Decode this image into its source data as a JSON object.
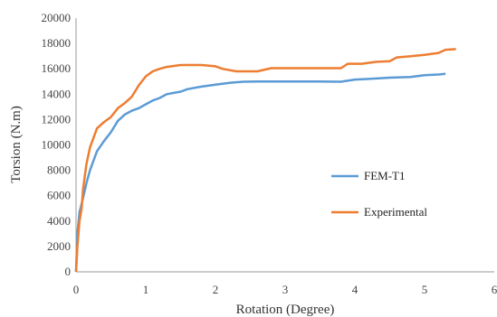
{
  "chart_data": {
    "type": "line",
    "title": "",
    "xlabel": "Rotation (Degree)",
    "ylabel": "Torsion (N.m)",
    "xlim": [
      0,
      6
    ],
    "ylim": [
      0,
      20000
    ],
    "xticks": [
      "0",
      "1",
      "2",
      "3",
      "4",
      "5",
      "6"
    ],
    "yticks": [
      "0",
      "2000",
      "4000",
      "6000",
      "8000",
      "10000",
      "12000",
      "14000",
      "16000",
      "18000",
      "20000"
    ],
    "grid": false,
    "legend_position": "right",
    "series": [
      {
        "name": "FEM-T1",
        "color": "#5b9bd5",
        "points": [
          [
            0,
            0
          ],
          [
            0.02,
            3000
          ],
          [
            0.05,
            4700
          ],
          [
            0.1,
            5800
          ],
          [
            0.15,
            7000
          ],
          [
            0.2,
            8000
          ],
          [
            0.3,
            9500
          ],
          [
            0.4,
            10300
          ],
          [
            0.5,
            11000
          ],
          [
            0.6,
            11900
          ],
          [
            0.7,
            12400
          ],
          [
            0.8,
            12700
          ],
          [
            0.9,
            12900
          ],
          [
            1.0,
            13200
          ],
          [
            1.1,
            13500
          ],
          [
            1.2,
            13700
          ],
          [
            1.3,
            14000
          ],
          [
            1.4,
            14100
          ],
          [
            1.5,
            14200
          ],
          [
            1.6,
            14400
          ],
          [
            1.8,
            14600
          ],
          [
            2.0,
            14750
          ],
          [
            2.2,
            14900
          ],
          [
            2.4,
            14980
          ],
          [
            2.6,
            15000
          ],
          [
            3.0,
            15000
          ],
          [
            3.5,
            15000
          ],
          [
            3.8,
            14980
          ],
          [
            4.0,
            15150
          ],
          [
            4.2,
            15200
          ],
          [
            4.5,
            15300
          ],
          [
            4.8,
            15350
          ],
          [
            5.0,
            15500
          ],
          [
            5.2,
            15550
          ],
          [
            5.3,
            15600
          ]
        ]
      },
      {
        "name": "Experimental",
        "color": "#ed7d31",
        "points": [
          [
            0,
            0
          ],
          [
            0.02,
            2000
          ],
          [
            0.05,
            4000
          ],
          [
            0.08,
            5000
          ],
          [
            0.1,
            6500
          ],
          [
            0.15,
            8500
          ],
          [
            0.2,
            9800
          ],
          [
            0.3,
            11300
          ],
          [
            0.4,
            11800
          ],
          [
            0.5,
            12200
          ],
          [
            0.6,
            12900
          ],
          [
            0.7,
            13300
          ],
          [
            0.8,
            13800
          ],
          [
            0.9,
            14700
          ],
          [
            1.0,
            15400
          ],
          [
            1.1,
            15800
          ],
          [
            1.2,
            16000
          ],
          [
            1.3,
            16150
          ],
          [
            1.5,
            16300
          ],
          [
            1.8,
            16300
          ],
          [
            2.0,
            16200
          ],
          [
            2.1,
            16000
          ],
          [
            2.3,
            15800
          ],
          [
            2.6,
            15800
          ],
          [
            2.8,
            16050
          ],
          [
            3.2,
            16050
          ],
          [
            3.6,
            16050
          ],
          [
            3.8,
            16050
          ],
          [
            3.9,
            16400
          ],
          [
            4.1,
            16400
          ],
          [
            4.3,
            16550
          ],
          [
            4.5,
            16600
          ],
          [
            4.6,
            16900
          ],
          [
            4.8,
            17000
          ],
          [
            5.0,
            17100
          ],
          [
            5.2,
            17250
          ],
          [
            5.3,
            17500
          ],
          [
            5.45,
            17550
          ]
        ]
      }
    ]
  }
}
